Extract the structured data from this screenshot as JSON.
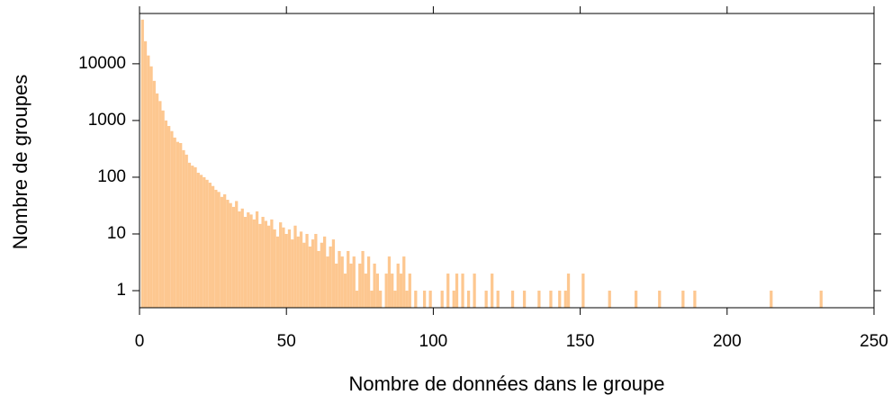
{
  "chart_data": {
    "type": "bar",
    "xlabel": "Nombre de données dans le groupe",
    "ylabel": "Nombre de groupes",
    "color": "#fdc790",
    "ylog": true,
    "grid": false,
    "xlim": [
      0,
      250
    ],
    "xticks": [
      0,
      50,
      100,
      150,
      200,
      250
    ],
    "ylim": [
      0.5,
      77000
    ],
    "yticks": [
      1,
      10,
      100,
      1000,
      10000
    ],
    "x": [
      1,
      2,
      3,
      4,
      5,
      6,
      7,
      8,
      9,
      10,
      11,
      12,
      13,
      14,
      15,
      16,
      17,
      18,
      19,
      20,
      21,
      22,
      23,
      24,
      25,
      26,
      27,
      28,
      29,
      30,
      31,
      32,
      33,
      34,
      35,
      36,
      37,
      38,
      39,
      40,
      41,
      42,
      43,
      44,
      45,
      46,
      47,
      48,
      49,
      50,
      51,
      52,
      53,
      54,
      55,
      56,
      57,
      58,
      59,
      60,
      61,
      62,
      63,
      64,
      65,
      66,
      67,
      68,
      69,
      70,
      71,
      72,
      73,
      74,
      75,
      76,
      77,
      78,
      79,
      80,
      81,
      82,
      84,
      85,
      86,
      87,
      88,
      89,
      90,
      91,
      92,
      94,
      97,
      99,
      103,
      105,
      107,
      108,
      110,
      112,
      114,
      118,
      120,
      122,
      127,
      131,
      136,
      140,
      143,
      145,
      146,
      151,
      160,
      169,
      177,
      185,
      189,
      215,
      232
    ],
    "values": [
      60000,
      25000,
      14000,
      9000,
      5000,
      3000,
      2200,
      1500,
      1000,
      800,
      650,
      500,
      420,
      400,
      300,
      250,
      180,
      160,
      150,
      120,
      110,
      100,
      90,
      80,
      70,
      60,
      55,
      45,
      50,
      40,
      35,
      30,
      38,
      25,
      28,
      20,
      24,
      22,
      18,
      25,
      15,
      20,
      17,
      14,
      18,
      12,
      9,
      16,
      13,
      10,
      12,
      8,
      14,
      9,
      11,
      7,
      10,
      6,
      8,
      10,
      5,
      7,
      9,
      4,
      6,
      8,
      3,
      5,
      4,
      2,
      5,
      3,
      4,
      1,
      3,
      5,
      2,
      4,
      1,
      3,
      2,
      1,
      2,
      4,
      2,
      1,
      3,
      2,
      4,
      1,
      2,
      1,
      1,
      1,
      1,
      2,
      1,
      2,
      2,
      1,
      2,
      1,
      2,
      1,
      1,
      1,
      1,
      1,
      1,
      1,
      2,
      2,
      1,
      1,
      1,
      1,
      1,
      1,
      1
    ]
  }
}
